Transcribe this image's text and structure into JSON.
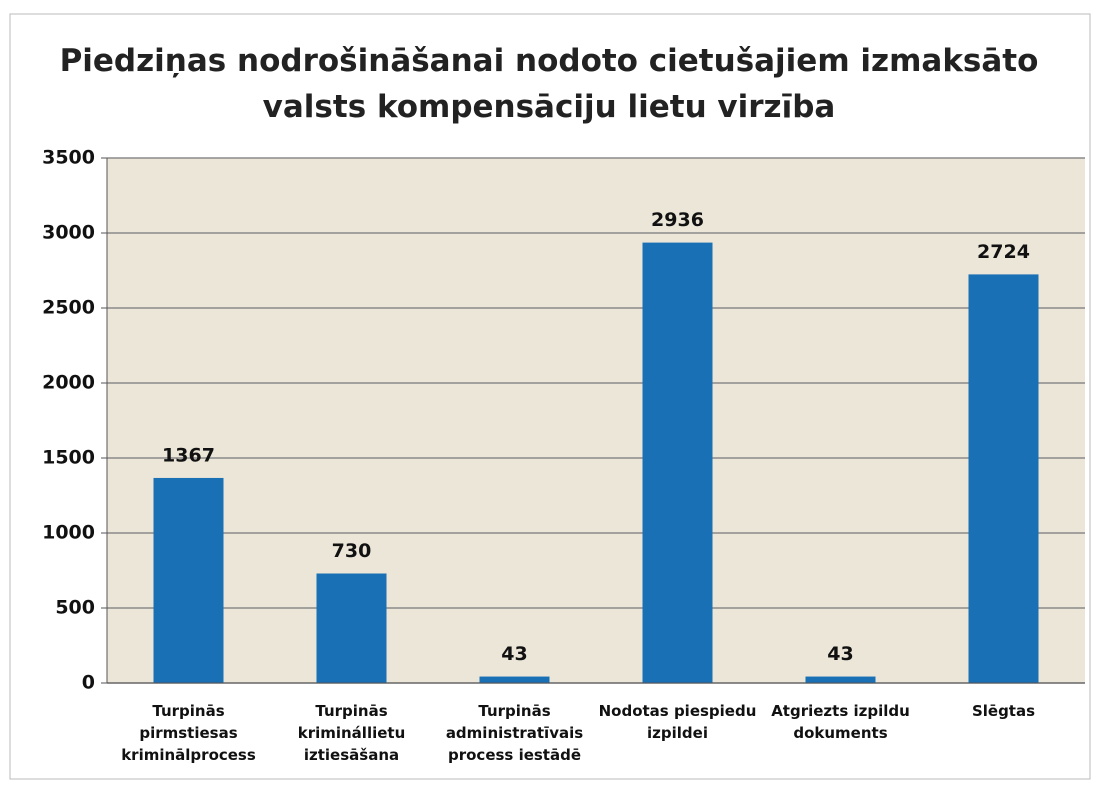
{
  "chart_data": {
    "type": "bar",
    "title": "Piedziņas nodrošināšanai nodoto cietušajiem izmaksāto\nvalsts kompensāciju lietu virzība",
    "categories": [
      "Turpinās\npirmstiesas\nkriminālprocess",
      "Turpinās\nkriminállietu\niztiesāšana",
      "Turpinās\nadministratīvais\nprocess iestādē",
      "Nodotas piespiedu\nizpildei",
      "Atgriezts izpildu\ndokuments",
      "Slēgtas"
    ],
    "values": [
      1367,
      730,
      43,
      2936,
      43,
      2724
    ],
    "color": "#1a70b5",
    "ylim": [
      0,
      3500
    ],
    "yticks": [
      0,
      500,
      1000,
      1500,
      2000,
      2500,
      3000,
      3500
    ],
    "grid": true
  }
}
